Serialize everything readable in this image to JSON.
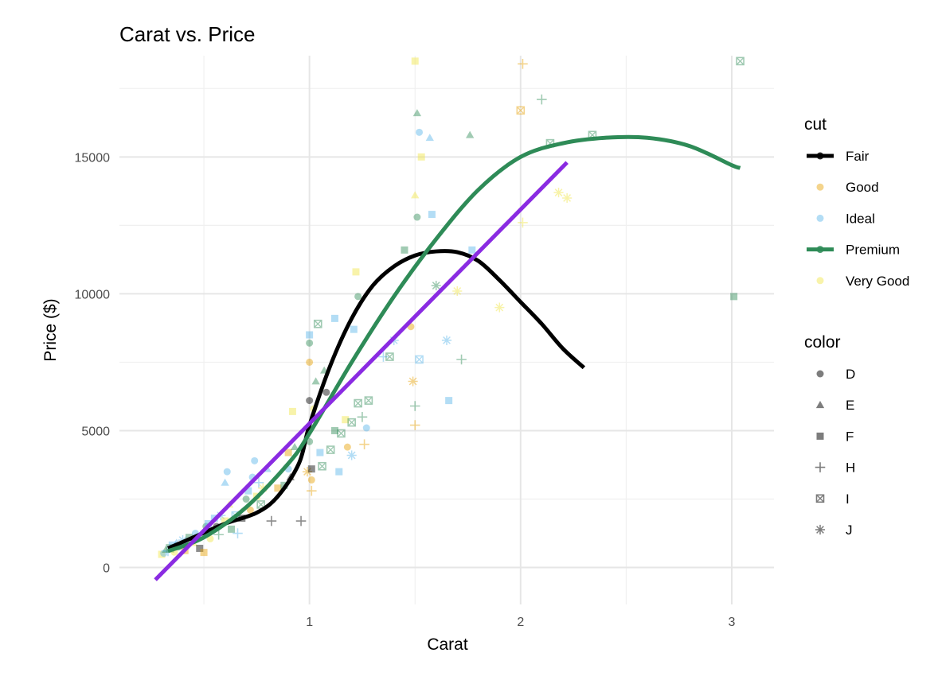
{
  "chart_data": {
    "type": "scatter",
    "title": "Carat vs. Price",
    "xlabel": "Carat",
    "ylabel": "Price ($)",
    "xlim": [
      0.1,
      3.2
    ],
    "ylim": [
      -1350,
      18700
    ],
    "xticks": [
      1,
      2,
      3
    ],
    "yticks": [
      0,
      5000,
      10000,
      15000
    ],
    "grid": true,
    "legend_position": "right",
    "legends": [
      {
        "title": "cut",
        "entries": [
          {
            "label": "Fair",
            "color": "#000000",
            "line": true
          },
          {
            "label": "Good",
            "color": "#E69F00",
            "line": false
          },
          {
            "label": "Ideal",
            "color": "#56B4E9",
            "line": false
          },
          {
            "label": "Premium",
            "color": "#2E8B57",
            "line": true
          },
          {
            "label": "Very Good",
            "color": "#F0E442",
            "line": false
          }
        ]
      },
      {
        "title": "color",
        "entries": [
          {
            "label": "D",
            "shape": "circle"
          },
          {
            "label": "E",
            "shape": "triangle"
          },
          {
            "label": "F",
            "shape": "square"
          },
          {
            "label": "H",
            "shape": "plus"
          },
          {
            "label": "I",
            "shape": "square-x"
          },
          {
            "label": "J",
            "shape": "asterisk"
          }
        ]
      }
    ],
    "smooth_lines": [
      {
        "name": "Fair",
        "color": "#000000",
        "x": [
          0.33,
          0.45,
          0.6,
          0.75,
          0.85,
          0.95,
          1.0,
          1.1,
          1.2,
          1.3,
          1.4,
          1.5,
          1.6,
          1.7,
          1.8,
          1.9,
          2.0,
          2.1,
          2.2,
          2.3
        ],
        "y": [
          700,
          1100,
          1600,
          2000,
          2600,
          3800,
          5200,
          7400,
          9100,
          10300,
          11000,
          11400,
          11550,
          11520,
          11200,
          10500,
          9700,
          8900,
          8000,
          7300
        ]
      },
      {
        "name": "Premium",
        "color": "#2E8B57",
        "x": [
          0.33,
          0.5,
          0.7,
          0.9,
          1.0,
          1.2,
          1.4,
          1.6,
          1.8,
          2.0,
          2.2,
          2.4,
          2.6,
          2.8,
          3.0,
          3.04
        ],
        "y": [
          600,
          1100,
          2200,
          3800,
          4900,
          7500,
          9900,
          12000,
          13800,
          15000,
          15500,
          15700,
          15700,
          15400,
          14700,
          14600
        ]
      },
      {
        "name": "linear fit",
        "color": "#8A2BE2",
        "x": [
          0.27,
          2.22
        ],
        "y": [
          -450,
          14800
        ]
      }
    ],
    "points": [
      {
        "x": 0.3,
        "y": 480,
        "cut": "Very Good",
        "shape": "square"
      },
      {
        "x": 0.31,
        "y": 520,
        "cut": "Ideal",
        "shape": "circle"
      },
      {
        "x": 0.32,
        "y": 650,
        "cut": "Premium",
        "shape": "triangle"
      },
      {
        "x": 0.33,
        "y": 600,
        "cut": "Ideal",
        "shape": "plus"
      },
      {
        "x": 0.34,
        "y": 700,
        "cut": "Premium",
        "shape": "square-x"
      },
      {
        "x": 0.35,
        "y": 820,
        "cut": "Ideal",
        "shape": "square"
      },
      {
        "x": 0.36,
        "y": 560,
        "cut": "Very Good",
        "shape": "circle"
      },
      {
        "x": 0.37,
        "y": 900,
        "cut": "Ideal",
        "shape": "triangle"
      },
      {
        "x": 0.38,
        "y": 750,
        "cut": "Premium",
        "shape": "circle"
      },
      {
        "x": 0.4,
        "y": 1000,
        "cut": "Ideal",
        "shape": "asterisk"
      },
      {
        "x": 0.41,
        "y": 620,
        "cut": "Good",
        "shape": "square"
      },
      {
        "x": 0.42,
        "y": 880,
        "cut": "Ideal",
        "shape": "plus"
      },
      {
        "x": 0.43,
        "y": 1100,
        "cut": "Premium",
        "shape": "square"
      },
      {
        "x": 0.45,
        "y": 900,
        "cut": "Very Good",
        "shape": "triangle"
      },
      {
        "x": 0.46,
        "y": 1250,
        "cut": "Ideal",
        "shape": "circle"
      },
      {
        "x": 0.48,
        "y": 700,
        "cut": "Fair",
        "shape": "square"
      },
      {
        "x": 0.5,
        "y": 1300,
        "cut": "Ideal",
        "shape": "triangle"
      },
      {
        "x": 0.5,
        "y": 550,
        "cut": "Good",
        "shape": "square"
      },
      {
        "x": 0.51,
        "y": 1500,
        "cut": "Premium",
        "shape": "circle"
      },
      {
        "x": 0.52,
        "y": 1600,
        "cut": "Ideal",
        "shape": "square"
      },
      {
        "x": 0.53,
        "y": 1050,
        "cut": "Very Good",
        "shape": "circle"
      },
      {
        "x": 0.55,
        "y": 1800,
        "cut": "Ideal",
        "shape": "square"
      },
      {
        "x": 0.56,
        "y": 1500,
        "cut": "Fair",
        "shape": "circle"
      },
      {
        "x": 0.57,
        "y": 1200,
        "cut": "Premium",
        "shape": "plus"
      },
      {
        "x": 0.58,
        "y": 1900,
        "cut": "Ideal",
        "shape": "asterisk"
      },
      {
        "x": 0.6,
        "y": 1700,
        "cut": "Very Good",
        "shape": "square"
      },
      {
        "x": 0.6,
        "y": 3100,
        "cut": "Ideal",
        "shape": "triangle"
      },
      {
        "x": 0.61,
        "y": 3500,
        "cut": "Ideal",
        "shape": "circle"
      },
      {
        "x": 0.62,
        "y": 2300,
        "cut": "Very Good",
        "shape": "triangle"
      },
      {
        "x": 0.63,
        "y": 1400,
        "cut": "Premium",
        "shape": "square"
      },
      {
        "x": 0.65,
        "y": 1900,
        "cut": "Ideal",
        "shape": "square-x"
      },
      {
        "x": 0.66,
        "y": 1250,
        "cut": "Ideal",
        "shape": "plus"
      },
      {
        "x": 0.68,
        "y": 1800,
        "cut": "Fair",
        "shape": "square"
      },
      {
        "x": 0.7,
        "y": 2500,
        "cut": "Premium",
        "shape": "circle"
      },
      {
        "x": 0.71,
        "y": 2800,
        "cut": "Ideal",
        "shape": "square"
      },
      {
        "x": 0.72,
        "y": 2100,
        "cut": "Good",
        "shape": "circle"
      },
      {
        "x": 0.73,
        "y": 3300,
        "cut": "Ideal",
        "shape": "circle"
      },
      {
        "x": 0.74,
        "y": 3900,
        "cut": "Ideal",
        "shape": "circle"
      },
      {
        "x": 0.75,
        "y": 2600,
        "cut": "Very Good",
        "shape": "square"
      },
      {
        "x": 0.76,
        "y": 3100,
        "cut": "Ideal",
        "shape": "plus"
      },
      {
        "x": 0.77,
        "y": 2300,
        "cut": "Premium",
        "shape": "square-x"
      },
      {
        "x": 0.78,
        "y": 2900,
        "cut": "Very Good",
        "shape": "asterisk"
      },
      {
        "x": 0.8,
        "y": 3600,
        "cut": "Ideal",
        "shape": "triangle"
      },
      {
        "x": 0.82,
        "y": 1700,
        "cut": "Fair",
        "shape": "plus"
      },
      {
        "x": 0.85,
        "y": 2900,
        "cut": "Good",
        "shape": "square"
      },
      {
        "x": 0.88,
        "y": 3000,
        "cut": "Premium",
        "shape": "square"
      },
      {
        "x": 0.9,
        "y": 3600,
        "cut": "Ideal",
        "shape": "circle"
      },
      {
        "x": 0.9,
        "y": 4200,
        "cut": "Good",
        "shape": "square"
      },
      {
        "x": 0.91,
        "y": 3300,
        "cut": "Fair",
        "shape": "triangle"
      },
      {
        "x": 0.92,
        "y": 5700,
        "cut": "Very Good",
        "shape": "square"
      },
      {
        "x": 0.93,
        "y": 4400,
        "cut": "Premium",
        "shape": "triangle"
      },
      {
        "x": 0.96,
        "y": 1700,
        "cut": "Fair",
        "shape": "plus"
      },
      {
        "x": 0.99,
        "y": 3500,
        "cut": "Good",
        "shape": "asterisk"
      },
      {
        "x": 1.0,
        "y": 7500,
        "cut": "Good",
        "shape": "circle"
      },
      {
        "x": 1.0,
        "y": 8200,
        "cut": "Premium",
        "shape": "circle"
      },
      {
        "x": 1.0,
        "y": 8500,
        "cut": "Ideal",
        "shape": "square"
      },
      {
        "x": 1.0,
        "y": 6100,
        "cut": "Fair",
        "shape": "circle"
      },
      {
        "x": 1.0,
        "y": 5200,
        "cut": "Ideal",
        "shape": "triangle"
      },
      {
        "x": 1.0,
        "y": 4600,
        "cut": "Premium",
        "shape": "circle"
      },
      {
        "x": 1.01,
        "y": 3600,
        "cut": "Fair",
        "shape": "square"
      },
      {
        "x": 1.01,
        "y": 2800,
        "cut": "Good",
        "shape": "plus"
      },
      {
        "x": 1.01,
        "y": 3200,
        "cut": "Good",
        "shape": "circle"
      },
      {
        "x": 1.02,
        "y": 5800,
        "cut": "Very Good",
        "shape": "circle"
      },
      {
        "x": 1.03,
        "y": 6800,
        "cut": "Premium",
        "shape": "triangle"
      },
      {
        "x": 1.04,
        "y": 8900,
        "cut": "Premium",
        "shape": "square-x"
      },
      {
        "x": 1.05,
        "y": 4200,
        "cut": "Ideal",
        "shape": "square"
      },
      {
        "x": 1.06,
        "y": 3700,
        "cut": "Premium",
        "shape": "square-x"
      },
      {
        "x": 1.07,
        "y": 7200,
        "cut": "Premium",
        "shape": "triangle"
      },
      {
        "x": 1.08,
        "y": 6400,
        "cut": "Fair",
        "shape": "circle"
      },
      {
        "x": 1.1,
        "y": 4300,
        "cut": "Premium",
        "shape": "square-x"
      },
      {
        "x": 1.12,
        "y": 9100,
        "cut": "Ideal",
        "shape": "square"
      },
      {
        "x": 1.12,
        "y": 5000,
        "cut": "Premium",
        "shape": "square"
      },
      {
        "x": 1.14,
        "y": 3500,
        "cut": "Ideal",
        "shape": "square"
      },
      {
        "x": 1.15,
        "y": 4900,
        "cut": "Premium",
        "shape": "square-x"
      },
      {
        "x": 1.17,
        "y": 5400,
        "cut": "Very Good",
        "shape": "square"
      },
      {
        "x": 1.18,
        "y": 4400,
        "cut": "Good",
        "shape": "circle"
      },
      {
        "x": 1.2,
        "y": 5300,
        "cut": "Premium",
        "shape": "square-x"
      },
      {
        "x": 1.21,
        "y": 8700,
        "cut": "Ideal",
        "shape": "square"
      },
      {
        "x": 1.22,
        "y": 10800,
        "cut": "Very Good",
        "shape": "square"
      },
      {
        "x": 1.23,
        "y": 9900,
        "cut": "Premium",
        "shape": "circle"
      },
      {
        "x": 1.23,
        "y": 6000,
        "cut": "Premium",
        "shape": "square-x"
      },
      {
        "x": 1.25,
        "y": 5500,
        "cut": "Premium",
        "shape": "plus"
      },
      {
        "x": 1.26,
        "y": 4500,
        "cut": "Good",
        "shape": "plus"
      },
      {
        "x": 1.27,
        "y": 5100,
        "cut": "Ideal",
        "shape": "circle"
      },
      {
        "x": 1.28,
        "y": 6100,
        "cut": "Premium",
        "shape": "square-x"
      },
      {
        "x": 1.2,
        "y": 4100,
        "cut": "Ideal",
        "shape": "asterisk"
      },
      {
        "x": 1.35,
        "y": 7700,
        "cut": "Ideal",
        "shape": "plus"
      },
      {
        "x": 1.38,
        "y": 7700,
        "cut": "Premium",
        "shape": "square-x"
      },
      {
        "x": 1.4,
        "y": 8300,
        "cut": "Ideal",
        "shape": "asterisk"
      },
      {
        "x": 1.45,
        "y": 11600,
        "cut": "Premium",
        "shape": "square"
      },
      {
        "x": 1.48,
        "y": 8800,
        "cut": "Good",
        "shape": "circle"
      },
      {
        "x": 1.49,
        "y": 6800,
        "cut": "Good",
        "shape": "asterisk"
      },
      {
        "x": 1.5,
        "y": 18500,
        "cut": "Very Good",
        "shape": "square"
      },
      {
        "x": 1.5,
        "y": 13600,
        "cut": "Very Good",
        "shape": "triangle"
      },
      {
        "x": 1.5,
        "y": 5200,
        "cut": "Good",
        "shape": "plus"
      },
      {
        "x": 1.5,
        "y": 5900,
        "cut": "Premium",
        "shape": "plus"
      },
      {
        "x": 1.51,
        "y": 16600,
        "cut": "Premium",
        "shape": "triangle"
      },
      {
        "x": 1.51,
        "y": 12800,
        "cut": "Premium",
        "shape": "circle"
      },
      {
        "x": 1.52,
        "y": 15900,
        "cut": "Ideal",
        "shape": "circle"
      },
      {
        "x": 1.52,
        "y": 7600,
        "cut": "Ideal",
        "shape": "square-x"
      },
      {
        "x": 1.53,
        "y": 15000,
        "cut": "Very Good",
        "shape": "square"
      },
      {
        "x": 1.57,
        "y": 15700,
        "cut": "Ideal",
        "shape": "triangle"
      },
      {
        "x": 1.58,
        "y": 12900,
        "cut": "Ideal",
        "shape": "square"
      },
      {
        "x": 1.6,
        "y": 10300,
        "cut": "Premium",
        "shape": "asterisk"
      },
      {
        "x": 1.65,
        "y": 8300,
        "cut": "Ideal",
        "shape": "asterisk"
      },
      {
        "x": 1.66,
        "y": 6100,
        "cut": "Ideal",
        "shape": "square"
      },
      {
        "x": 1.7,
        "y": 10100,
        "cut": "Very Good",
        "shape": "asterisk"
      },
      {
        "x": 1.72,
        "y": 7600,
        "cut": "Premium",
        "shape": "plus"
      },
      {
        "x": 1.76,
        "y": 15800,
        "cut": "Premium",
        "shape": "triangle"
      },
      {
        "x": 1.77,
        "y": 11600,
        "cut": "Ideal",
        "shape": "square"
      },
      {
        "x": 1.9,
        "y": 9500,
        "cut": "Very Good",
        "shape": "asterisk"
      },
      {
        "x": 2.0,
        "y": 16700,
        "cut": "Good",
        "shape": "square-x"
      },
      {
        "x": 2.01,
        "y": 18400,
        "cut": "Good",
        "shape": "plus"
      },
      {
        "x": 2.01,
        "y": 12600,
        "cut": "Very Good",
        "shape": "plus"
      },
      {
        "x": 2.1,
        "y": 17100,
        "cut": "Premium",
        "shape": "plus"
      },
      {
        "x": 2.14,
        "y": 15500,
        "cut": "Premium",
        "shape": "square-x"
      },
      {
        "x": 2.18,
        "y": 13700,
        "cut": "Very Good",
        "shape": "asterisk"
      },
      {
        "x": 2.22,
        "y": 13500,
        "cut": "Very Good",
        "shape": "asterisk"
      },
      {
        "x": 2.34,
        "y": 15800,
        "cut": "Premium",
        "shape": "square-x"
      },
      {
        "x": 3.01,
        "y": 9900,
        "cut": "Premium",
        "shape": "square"
      },
      {
        "x": 3.04,
        "y": 18500,
        "cut": "Premium",
        "shape": "square-x"
      }
    ]
  }
}
